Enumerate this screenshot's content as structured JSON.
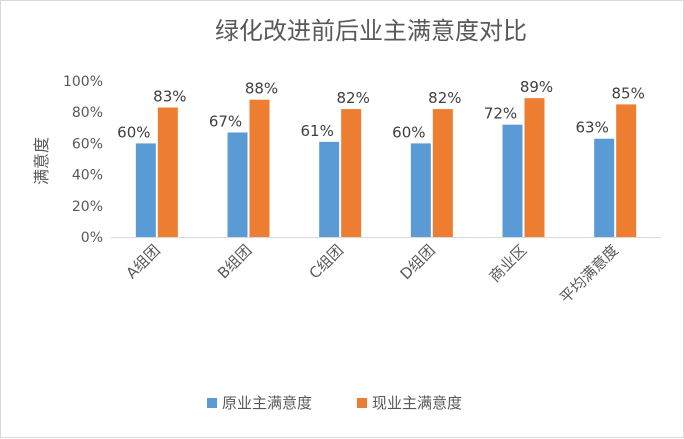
{
  "chart_data": {
    "type": "bar",
    "title": "绿化改进前后业主满意度对比",
    "xlabel": "",
    "ylabel": "满意度",
    "categories": [
      "A组团",
      "B组团",
      "C组团",
      "D组团",
      "商业区",
      "平均满意度"
    ],
    "series": [
      {
        "name": "原业主满意度",
        "color": "#5b9bd5",
        "values": [
          60,
          67,
          61,
          60,
          72,
          63
        ]
      },
      {
        "name": "现业主满意度",
        "color": "#ed7d31",
        "values": [
          83,
          88,
          82,
          82,
          89,
          85
        ]
      }
    ],
    "value_format": "percent",
    "ylim": [
      0,
      100
    ],
    "yticks": [
      0,
      20,
      40,
      60,
      80,
      100
    ],
    "ytick_labels": [
      "0%",
      "20%",
      "40%",
      "60%",
      "80%",
      "100%"
    ],
    "data_labels": {
      "原业主满意度": [
        "60%",
        "67%",
        "61%",
        "60%",
        "72%",
        "63%"
      ],
      "现业主满意度": [
        "83%",
        "88%",
        "82%",
        "82%",
        "89%",
        "85%"
      ]
    },
    "grid": false,
    "legend_position": "bottom"
  }
}
